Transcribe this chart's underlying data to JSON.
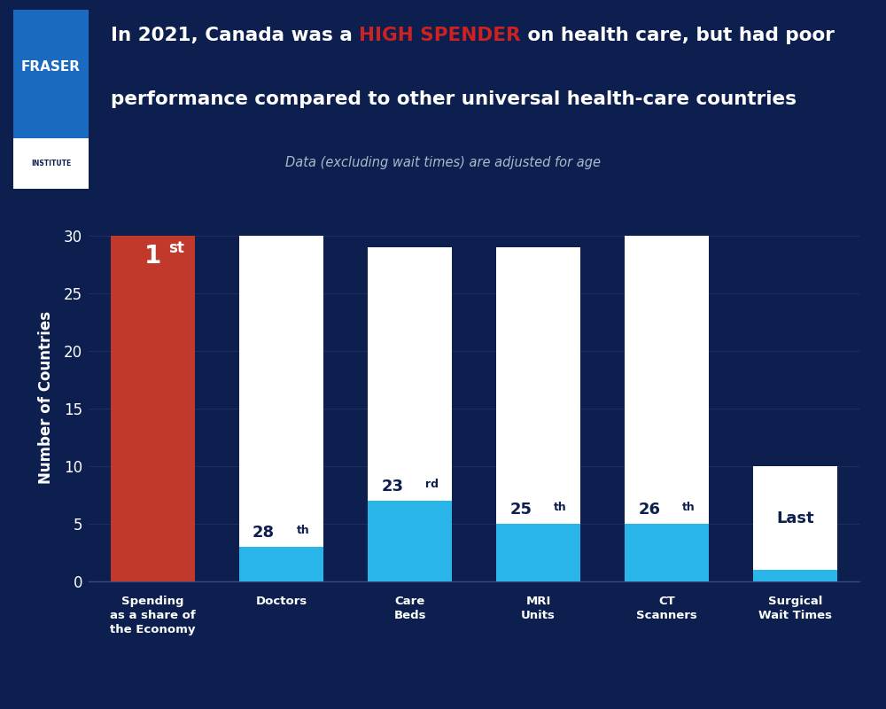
{
  "background_color": "#0d1f4e",
  "title_part1": "In 2021, Canada was a ",
  "title_highlight": "HIGH SPENDER",
  "title_part2": " on health care, but had poor",
  "title_line2": "performance compared to other universal health-care countries",
  "subtitle": "Data (excluding wait times) are adjusted for age",
  "ylabel": "Number of Countries",
  "ylim": [
    0,
    32
  ],
  "yticks": [
    0,
    5,
    10,
    15,
    20,
    25,
    30
  ],
  "categories": [
    "Spending\nas a share of\nthe Economy",
    "Doctors",
    "Care\nBeds",
    "MRI\nUnits",
    "CT\nScanners",
    "Surgical\nWait Times"
  ],
  "total_heights": [
    30,
    30,
    29,
    29,
    30,
    10
  ],
  "canada_ranks": [
    30,
    3,
    7,
    5,
    5,
    1
  ],
  "rank_bases": [
    "1",
    "28",
    "23",
    "25",
    "26",
    "Last"
  ],
  "rank_superscripts": [
    "st",
    "th",
    "rd",
    "th",
    "th",
    ""
  ],
  "bar_colors_bottom": [
    "#c0392b",
    "#29b5e8",
    "#29b5e8",
    "#29b5e8",
    "#29b5e8",
    "#29b5e8"
  ],
  "bar_colors_top": [
    "#c0392b",
    "#ffffff",
    "#ffffff",
    "#ffffff",
    "#ffffff",
    "#ffffff"
  ],
  "title_color": "#ffffff",
  "highlight_color": "#cc2222",
  "subtitle_color": "#aabbcc",
  "ylabel_color": "#ffffff",
  "tick_color": "#ffffff",
  "rank_label_color_dark": "#0d1f4e",
  "rank_label_color_light": "#ffffff",
  "grid_color": "#1e3060",
  "fraser_box_color": "#1a6bbf",
  "fraser_institute_bg": "#ffffff"
}
